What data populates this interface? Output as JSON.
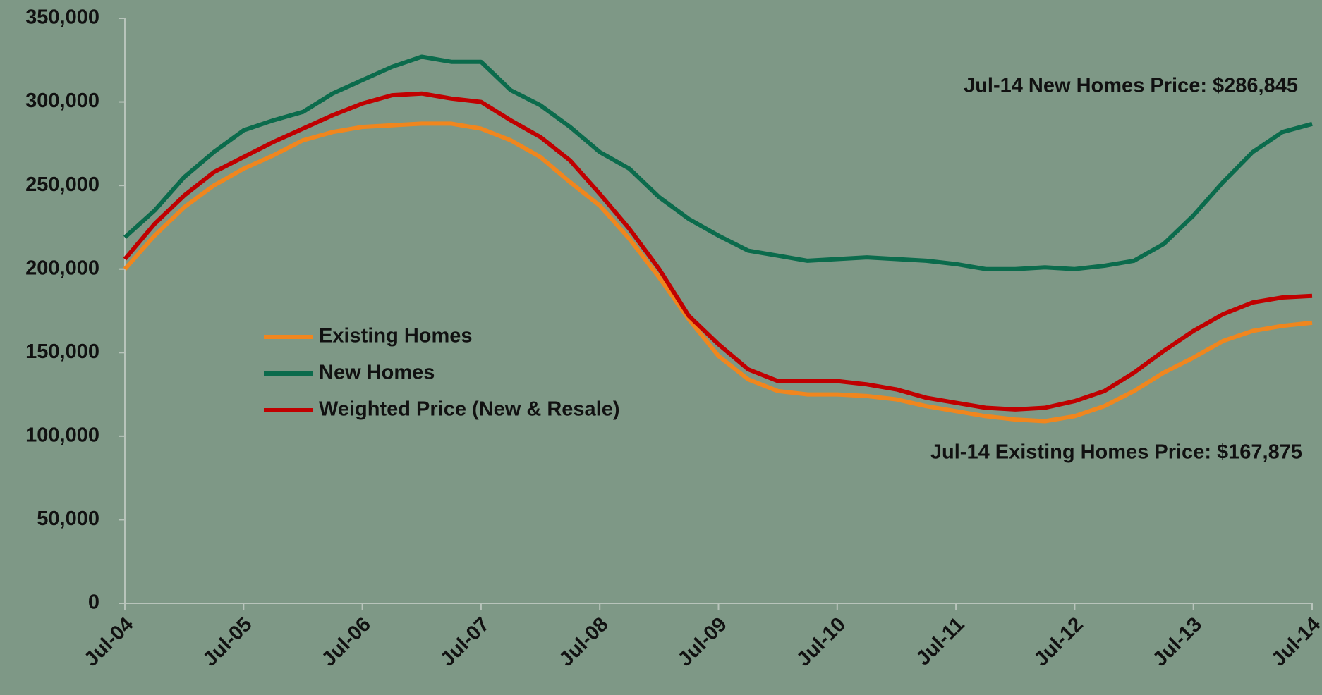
{
  "chart_data": {
    "type": "line",
    "categories": [
      "Jul-04",
      null,
      null,
      null,
      "Jul-05",
      null,
      null,
      null,
      "Jul-06",
      null,
      null,
      null,
      "Jul-07",
      null,
      null,
      null,
      "Jul-08",
      null,
      null,
      null,
      "Jul-09",
      null,
      null,
      null,
      "Jul-10",
      null,
      null,
      null,
      "Jul-11",
      null,
      null,
      null,
      "Jul-12",
      null,
      null,
      null,
      "Jul-13",
      null,
      null,
      null,
      "Jul-14"
    ],
    "series": [
      {
        "name": "Existing Homes",
        "color": "#f0861e",
        "values": [
          200000,
          220000,
          237000,
          250000,
          260000,
          268000,
          277000,
          282000,
          285000,
          286000,
          287000,
          287000,
          284000,
          277000,
          267000,
          252000,
          238000,
          218000,
          195000,
          170000,
          148000,
          134000,
          127000,
          125000,
          125000,
          124000,
          122000,
          118000,
          115000,
          112000,
          110000,
          109000,
          112000,
          118000,
          127000,
          138000,
          147000,
          157000,
          163000,
          166000,
          167875
        ]
      },
      {
        "name": "New Homes",
        "color": "#0b6b4c",
        "values": [
          219000,
          235000,
          255000,
          270000,
          283000,
          289000,
          294000,
          305000,
          313000,
          321000,
          327000,
          324000,
          324000,
          307000,
          298000,
          285000,
          270000,
          260000,
          243000,
          230000,
          220000,
          211000,
          208000,
          205000,
          206000,
          207000,
          206000,
          205000,
          203000,
          200000,
          200000,
          201000,
          200000,
          202000,
          205000,
          215000,
          232000,
          252000,
          270000,
          282000,
          286845
        ]
      },
      {
        "name": "Weighted Price (New & Resale)",
        "color": "#c00000",
        "values": [
          206000,
          227000,
          244000,
          258000,
          267000,
          276000,
          284000,
          292000,
          299000,
          304000,
          305000,
          302000,
          300000,
          289000,
          279000,
          265000,
          245000,
          224000,
          200000,
          172000,
          155000,
          140000,
          133000,
          133000,
          133000,
          131000,
          128000,
          123000,
          120000,
          117000,
          116000,
          117000,
          121000,
          127000,
          138000,
          151000,
          163000,
          173000,
          180000,
          183000,
          184000
        ]
      }
    ],
    "ylim": [
      0,
      350000
    ],
    "yticks": [
      0,
      {
        "value": 50000,
        "label": "50,000"
      },
      {
        "value": 100000,
        "label": "100,000"
      },
      {
        "value": 150000,
        "label": "150,000"
      },
      {
        "value": 200000,
        "label": "200,000"
      },
      {
        "value": 250000,
        "label": "250,000"
      },
      {
        "value": 300000,
        "label": "300,000"
      },
      {
        "value": 350000,
        "label": "350,000"
      }
    ],
    "annotations": [
      "Jul-14 New Homes Price: $286,845",
      "Jul-14 Existing Homes Price: $167,875"
    ],
    "background": "#7e9886"
  }
}
